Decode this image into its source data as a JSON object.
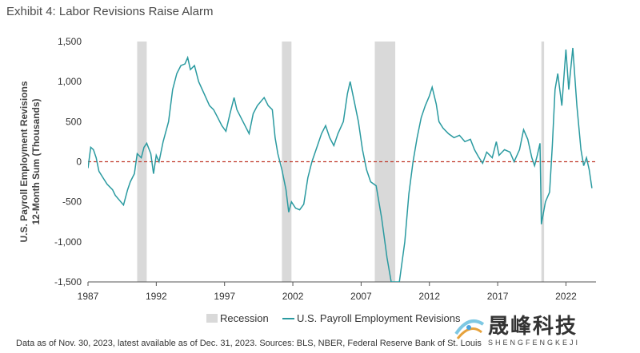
{
  "title": "Exhibit 4: Labor Revisions Raise Alarm",
  "source_note": "Data as of Nov. 30, 2023, latest available as of Dec. 31, 2023. Sources: BLS, NBER, Federal Reserve Bank of St. Louis",
  "watermark": {
    "chinese": "晟峰科技",
    "english": "SHENGFENGKEJI"
  },
  "colors": {
    "series": "#2a9aa0",
    "zero_line": "#c0392b",
    "recession": "#d9d9d9",
    "text": "#333333"
  },
  "chart_data": {
    "type": "line",
    "ylabel": "U.S. Payroll Employment Revisions\n12-Month Sum (Thousands)",
    "ylim": [
      -1500,
      1500
    ],
    "xlim": [
      1987,
      2024.2
    ],
    "y_ticks": [
      1500,
      1000,
      500,
      0,
      -500,
      -1000,
      -1500
    ],
    "y_tick_labels": [
      "1,500",
      "1,000",
      "500",
      "0",
      "-500",
      "-1,000",
      "-1,500"
    ],
    "x_ticks": [
      1987,
      1992,
      1997,
      2002,
      2007,
      2012,
      2017,
      2022
    ],
    "x_tick_labels": [
      "1987",
      "1992",
      "1997",
      "2002",
      "2007",
      "2012",
      "2017",
      "2022"
    ],
    "zero_line": {
      "y": 0,
      "style": "dashed"
    },
    "legend": {
      "position": "bottom",
      "items": [
        "Recession",
        "U.S. Payroll Employment Revisions"
      ]
    },
    "recessions": [
      [
        1990.6,
        1991.3
      ],
      [
        2001.2,
        2001.9
      ],
      [
        2008.0,
        2009.5
      ],
      [
        2020.2,
        2020.4
      ]
    ],
    "series": [
      {
        "name": "U.S. Payroll Employment Revisions",
        "points": [
          [
            1987.0,
            -80
          ],
          [
            1987.2,
            180
          ],
          [
            1987.4,
            150
          ],
          [
            1987.6,
            50
          ],
          [
            1987.8,
            -120
          ],
          [
            1988.1,
            -200
          ],
          [
            1988.4,
            -280
          ],
          [
            1988.8,
            -350
          ],
          [
            1989.0,
            -420
          ],
          [
            1989.3,
            -480
          ],
          [
            1989.6,
            -540
          ],
          [
            1989.9,
            -350
          ],
          [
            1990.1,
            -250
          ],
          [
            1990.4,
            -150
          ],
          [
            1990.6,
            100
          ],
          [
            1990.9,
            50
          ],
          [
            1991.1,
            180
          ],
          [
            1991.3,
            230
          ],
          [
            1991.6,
            100
          ],
          [
            1991.8,
            -150
          ],
          [
            1992.0,
            80
          ],
          [
            1992.2,
            0
          ],
          [
            1992.5,
            250
          ],
          [
            1992.9,
            500
          ],
          [
            1993.2,
            900
          ],
          [
            1993.5,
            1100
          ],
          [
            1993.8,
            1200
          ],
          [
            1994.1,
            1220
          ],
          [
            1994.3,
            1300
          ],
          [
            1994.5,
            1150
          ],
          [
            1994.8,
            1200
          ],
          [
            1995.1,
            1000
          ],
          [
            1995.5,
            850
          ],
          [
            1995.9,
            700
          ],
          [
            1996.2,
            650
          ],
          [
            1996.5,
            550
          ],
          [
            1996.8,
            450
          ],
          [
            1997.1,
            380
          ],
          [
            1997.4,
            600
          ],
          [
            1997.7,
            800
          ],
          [
            1997.9,
            650
          ],
          [
            1998.2,
            550
          ],
          [
            1998.5,
            450
          ],
          [
            1998.8,
            350
          ],
          [
            1999.1,
            600
          ],
          [
            1999.4,
            700
          ],
          [
            1999.7,
            760
          ],
          [
            1999.9,
            800
          ],
          [
            2000.2,
            700
          ],
          [
            2000.5,
            650
          ],
          [
            2000.7,
            300
          ],
          [
            2000.9,
            100
          ],
          [
            2001.2,
            -100
          ],
          [
            2001.5,
            -350
          ],
          [
            2001.7,
            -630
          ],
          [
            2001.9,
            -500
          ],
          [
            2002.2,
            -580
          ],
          [
            2002.5,
            -600
          ],
          [
            2002.8,
            -530
          ],
          [
            2003.1,
            -200
          ],
          [
            2003.4,
            0
          ],
          [
            2003.8,
            200
          ],
          [
            2004.1,
            350
          ],
          [
            2004.4,
            450
          ],
          [
            2004.7,
            300
          ],
          [
            2005.0,
            200
          ],
          [
            2005.3,
            350
          ],
          [
            2005.7,
            500
          ],
          [
            2006.0,
            850
          ],
          [
            2006.2,
            1000
          ],
          [
            2006.5,
            750
          ],
          [
            2006.8,
            500
          ],
          [
            2007.1,
            150
          ],
          [
            2007.4,
            -100
          ],
          [
            2007.7,
            -250
          ],
          [
            2008.1,
            -300
          ],
          [
            2008.5,
            -700
          ],
          [
            2008.9,
            -1200
          ],
          [
            2009.2,
            -1500
          ],
          [
            2009.8,
            -1500
          ],
          [
            2010.2,
            -1000
          ],
          [
            2010.5,
            -400
          ],
          [
            2010.8,
            0
          ],
          [
            2011.1,
            300
          ],
          [
            2011.4,
            550
          ],
          [
            2011.7,
            700
          ],
          [
            2012.0,
            820
          ],
          [
            2012.2,
            930
          ],
          [
            2012.5,
            720
          ],
          [
            2012.7,
            500
          ],
          [
            2013.0,
            420
          ],
          [
            2013.4,
            350
          ],
          [
            2013.8,
            300
          ],
          [
            2014.2,
            330
          ],
          [
            2014.6,
            250
          ],
          [
            2015.0,
            280
          ],
          [
            2015.3,
            150
          ],
          [
            2015.6,
            60
          ],
          [
            2015.9,
            -20
          ],
          [
            2016.2,
            120
          ],
          [
            2016.6,
            50
          ],
          [
            2016.9,
            250
          ],
          [
            2017.1,
            80
          ],
          [
            2017.5,
            150
          ],
          [
            2017.9,
            120
          ],
          [
            2018.2,
            0
          ],
          [
            2018.6,
            150
          ],
          [
            2018.9,
            400
          ],
          [
            2019.2,
            280
          ],
          [
            2019.5,
            50
          ],
          [
            2019.7,
            -50
          ],
          [
            2019.9,
            80
          ],
          [
            2020.1,
            230
          ],
          [
            2020.2,
            -780
          ],
          [
            2020.5,
            -500
          ],
          [
            2020.8,
            -380
          ],
          [
            2021.0,
            200
          ],
          [
            2021.2,
            900
          ],
          [
            2021.4,
            1100
          ],
          [
            2021.7,
            700
          ],
          [
            2022.0,
            1400
          ],
          [
            2022.2,
            900
          ],
          [
            2022.5,
            1420
          ],
          [
            2022.8,
            700
          ],
          [
            2023.1,
            150
          ],
          [
            2023.3,
            -50
          ],
          [
            2023.5,
            50
          ],
          [
            2023.7,
            -100
          ],
          [
            2023.9,
            -330
          ]
        ]
      }
    ]
  }
}
